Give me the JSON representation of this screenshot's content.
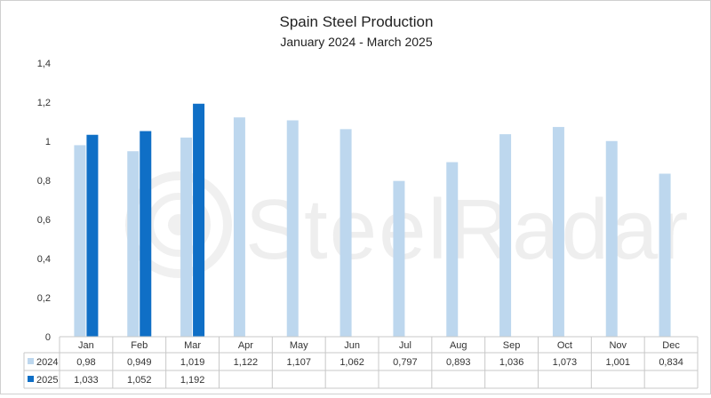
{
  "chart_data": {
    "type": "bar",
    "title": "Spain Steel Production",
    "subtitle": "January 2024 - March 2025",
    "categories": [
      "Jan",
      "Feb",
      "Mar",
      "Apr",
      "May",
      "Jun",
      "Jul",
      "Aug",
      "Sep",
      "Oct",
      "Nov",
      "Dec"
    ],
    "series": [
      {
        "name": "2024",
        "color": "#bdd7ee",
        "values": [
          0.98,
          0.949,
          1.019,
          1.122,
          1.107,
          1.062,
          0.797,
          0.893,
          1.036,
          1.073,
          1.001,
          0.834
        ],
        "labels": [
          "0,98",
          "0,949",
          "1,019",
          "1,122",
          "1,107",
          "1,062",
          "0,797",
          "0,893",
          "1,036",
          "1,073",
          "1,001",
          "0,834"
        ]
      },
      {
        "name": "2025",
        "color": "#0f6fc6",
        "values": [
          1.033,
          1.052,
          1.192,
          null,
          null,
          null,
          null,
          null,
          null,
          null,
          null,
          null
        ],
        "labels": [
          "1,033",
          "1,052",
          "1,192",
          "",
          "",
          "",
          "",
          "",
          "",
          "",
          "",
          ""
        ]
      }
    ],
    "ylim": [
      0,
      1.4
    ],
    "yticks": [
      "0",
      "0,2",
      "0,4",
      "0,6",
      "0,8",
      "1",
      "1,2",
      "1,4"
    ],
    "grid": false,
    "legend": "data-table",
    "watermark": "SteelRadar"
  }
}
